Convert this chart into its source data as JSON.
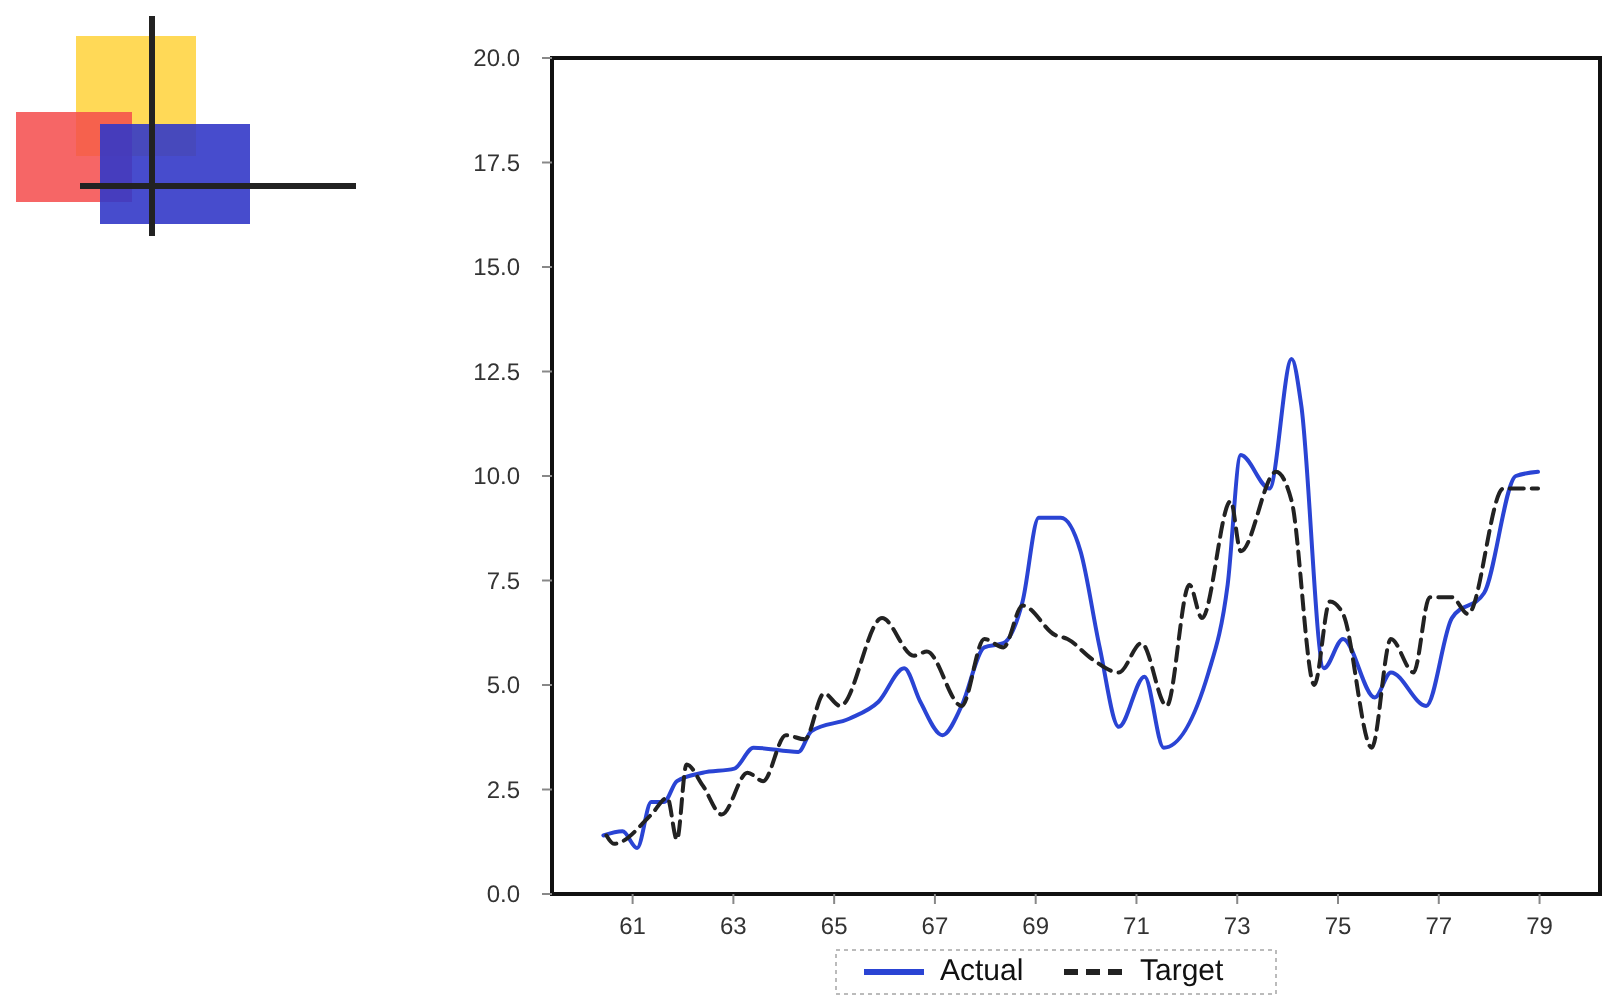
{
  "chart_data": {
    "type": "line",
    "xlim": [
      59.4,
      80.2
    ],
    "xticks": [
      61,
      63,
      65,
      67,
      69,
      71,
      73,
      75,
      77,
      79
    ],
    "ylim": [
      0,
      20
    ],
    "yticks": [
      {
        "value": 0,
        "label": "0.0"
      },
      {
        "value": 2.5,
        "label": "2.5"
      },
      {
        "value": 5,
        "label": "5.0"
      },
      {
        "value": 7.5,
        "label": "7.5"
      },
      {
        "value": 10,
        "label": "10.0"
      },
      {
        "value": 12.5,
        "label": "12.5"
      },
      {
        "value": 15,
        "label": "15.0"
      },
      {
        "value": 17.5,
        "label": "17.5"
      },
      {
        "value": 20,
        "label": "20.0"
      }
    ],
    "grid": false,
    "legend": "bottom",
    "marker": "none",
    "series": [
      {
        "name": "Actual",
        "color": "#2a44d4",
        "line_style": "solid",
        "x": [
          60.42,
          60.8,
          61.09,
          61.37,
          61.62,
          61.88,
          62.39,
          63.02,
          63.4,
          64.29,
          64.55,
          65.31,
          65.88,
          66.39,
          66.71,
          67.15,
          67.53,
          67.98,
          68.36,
          68.74,
          69.06,
          69.5,
          69.89,
          70.27,
          70.65,
          71.16,
          71.54,
          72.43,
          72.81,
          73.07,
          73.64,
          74.08,
          74.27,
          74.72,
          75.1,
          75.73,
          76.05,
          76.75,
          77.26,
          77.9,
          78.53,
          78.97
        ],
        "values": [
          1.4,
          1.5,
          1.1,
          2.2,
          2.2,
          2.7,
          2.9,
          3.0,
          3.5,
          3.4,
          3.9,
          4.2,
          4.6,
          5.4,
          4.6,
          3.8,
          4.5,
          5.9,
          6.0,
          7.0,
          9.0,
          9.0,
          8.2,
          5.9,
          4.0,
          5.2,
          3.5,
          5.3,
          7.4,
          10.5,
          9.7,
          12.8,
          11.7,
          5.4,
          6.1,
          4.7,
          5.3,
          4.5,
          6.6,
          7.2,
          10.0,
          10.1
        ]
      },
      {
        "name": "Target",
        "color": "#222222",
        "line_style": "dashed",
        "x": [
          60.48,
          60.63,
          61.37,
          61.69,
          61.88,
          62.07,
          62.39,
          62.77,
          63.28,
          63.59,
          64.04,
          64.42,
          64.8,
          65.12,
          65.95,
          66.58,
          66.84,
          67.53,
          67.98,
          68.36,
          68.74,
          69.38,
          69.63,
          70.14,
          70.65,
          71.1,
          71.6,
          72.05,
          72.3,
          72.87,
          73.07,
          73.77,
          74.08,
          74.53,
          74.84,
          75.1,
          75.67,
          76.05,
          76.5,
          76.82,
          77.26,
          77.58,
          78.28,
          78.97
        ],
        "values": [
          1.4,
          1.2,
          1.9,
          2.3,
          1.3,
          3.1,
          2.6,
          1.9,
          2.9,
          2.7,
          3.8,
          3.7,
          4.8,
          4.5,
          6.6,
          5.7,
          5.8,
          4.5,
          6.1,
          5.9,
          6.9,
          6.2,
          6.1,
          5.6,
          5.3,
          6.0,
          4.5,
          7.4,
          6.6,
          9.4,
          8.2,
          10.1,
          9.4,
          5.0,
          7.0,
          6.7,
          3.5,
          6.1,
          5.3,
          7.1,
          7.1,
          6.7,
          9.7,
          9.7
        ]
      }
    ]
  }
}
